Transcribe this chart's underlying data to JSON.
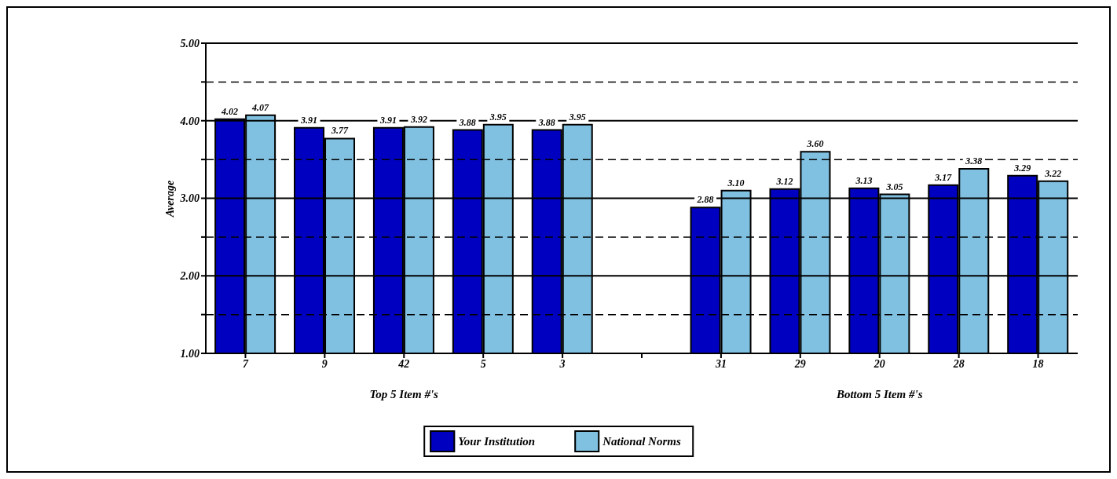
{
  "chart_data": {
    "type": "bar",
    "ylabel": "Average",
    "categories": [
      "7",
      "9",
      "42",
      "5",
      "3",
      null,
      "31",
      "29",
      "20",
      "28",
      "18"
    ],
    "series": [
      {
        "name": "Your Institution",
        "color": "#0000c0",
        "values": [
          4.02,
          3.91,
          3.91,
          3.88,
          3.88,
          null,
          2.88,
          3.12,
          3.13,
          3.17,
          3.29
        ],
        "value_labels": [
          "4.02",
          "3.91",
          "3.91",
          "3.88",
          "3.88",
          null,
          "2.88",
          "3.12",
          "3.13",
          "3.17",
          "3.29"
        ]
      },
      {
        "name": "National Norms",
        "color": "#80c0e0",
        "values": [
          4.07,
          3.77,
          3.92,
          3.95,
          3.95,
          null,
          3.1,
          3.6,
          3.05,
          3.38,
          3.22
        ],
        "value_labels": [
          "4.07",
          "3.77",
          "3.92",
          "3.95",
          "3.95",
          null,
          "3.10",
          "3.60",
          "3.05",
          "3.38",
          "3.22"
        ]
      }
    ],
    "annotations": [
      "Top 5 Item #'s",
      "Bottom 5 Item #'s"
    ],
    "ylim": [
      1,
      5
    ],
    "yticks": [
      {
        "value": 1,
        "label": "1.00"
      },
      {
        "value": 1.5,
        "label": null
      },
      {
        "value": 2,
        "label": "2.00"
      },
      {
        "value": 2.5,
        "label": null
      },
      {
        "value": 3,
        "label": "3.00"
      },
      {
        "value": 3.5,
        "label": null
      },
      {
        "value": 4,
        "label": "4.00"
      },
      {
        "value": 4.5,
        "label": null
      },
      {
        "value": 5,
        "label": "5.00"
      }
    ],
    "grid": "y",
    "legend": "bottom"
  }
}
